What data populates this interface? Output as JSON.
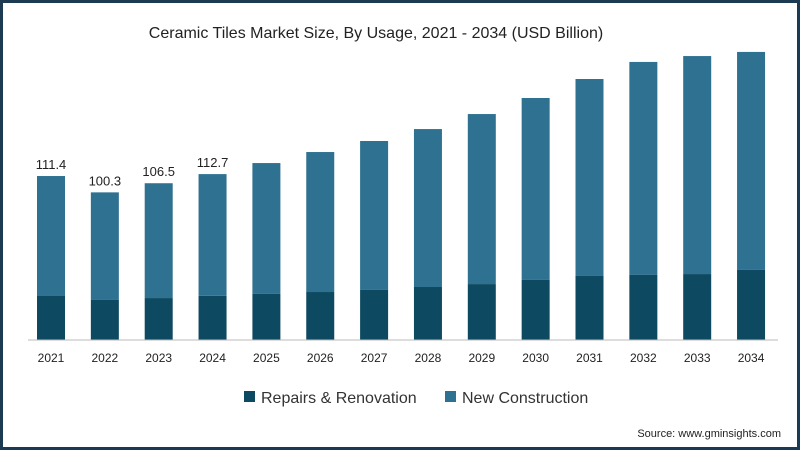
{
  "chart_data": {
    "type": "bar",
    "stacked": true,
    "title": "Ceramic Tiles Market Size, By Usage, 2021 - 2034 (USD Billion)",
    "xlabel": "",
    "ylabel": "",
    "categories": [
      "2021",
      "2022",
      "2023",
      "2024",
      "2025",
      "2026",
      "2027",
      "2028",
      "2029",
      "2030",
      "2031",
      "2032",
      "2033",
      "2034"
    ],
    "series": [
      {
        "name": "Repairs & Renovation",
        "color": "#0d4a62",
        "values": [
          29.9,
          27.2,
          28.5,
          30.0,
          31.3,
          32.6,
          34.0,
          36.0,
          38.0,
          40.8,
          43.5,
          44.2,
          44.8,
          47.6
        ]
      },
      {
        "name": "New Construction",
        "color": "#2f7191",
        "values": [
          81.5,
          73.1,
          78.0,
          82.7,
          88.9,
          95.1,
          101.2,
          107.3,
          115.5,
          123.6,
          133.8,
          144.7,
          148.1,
          148.1
        ]
      }
    ],
    "data_labels": [
      {
        "category": "2021",
        "text": "111.4"
      },
      {
        "category": "2022",
        "text": "100.3"
      },
      {
        "category": "2023",
        "text": "106.5"
      },
      {
        "category": "2024",
        "text": "112.7"
      }
    ],
    "ylim": [
      0,
      200
    ],
    "grid": false,
    "legend_position": "bottom"
  },
  "source": "Source: www.gminsights.com"
}
